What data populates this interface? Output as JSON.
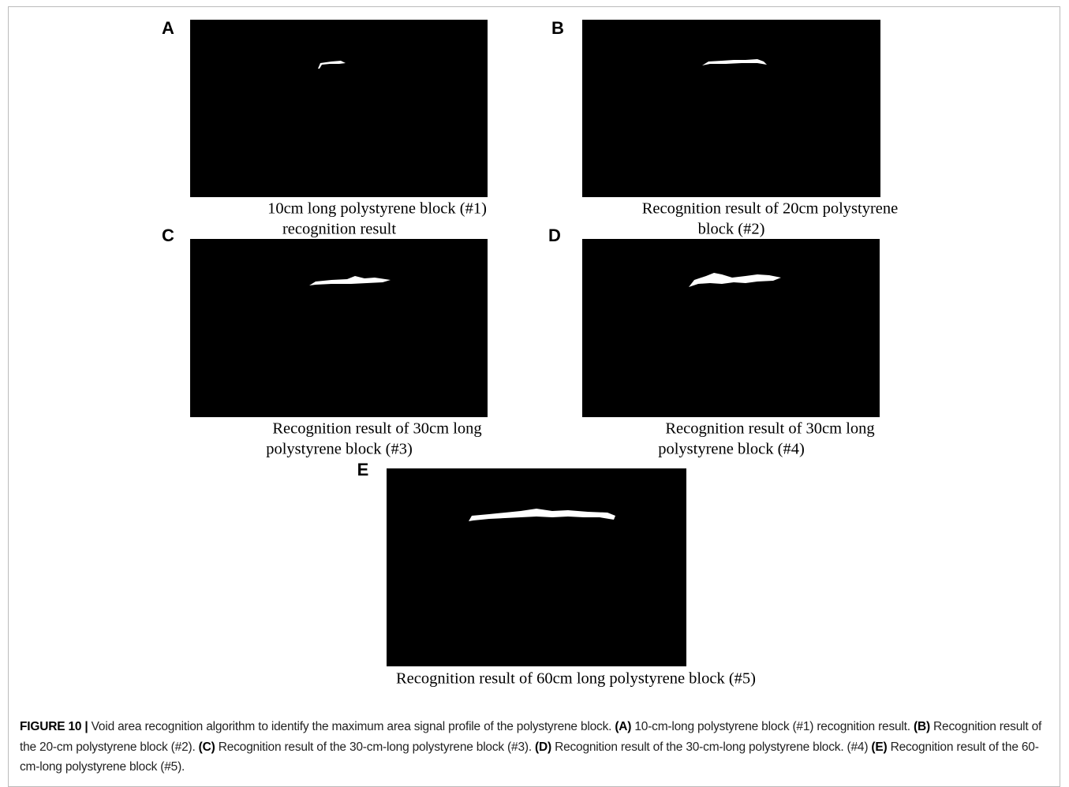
{
  "panels": [
    {
      "letter": "A",
      "caption_lines": [
        "10cm long polystyrene block (#1)",
        "recognition result"
      ]
    },
    {
      "letter": "B",
      "caption_lines": [
        "Recognition result of 20cm polystyrene",
        "block (#2)"
      ]
    },
    {
      "letter": "C",
      "caption_lines": [
        "Recognition result of 30cm long",
        "polystyrene block (#3)"
      ]
    },
    {
      "letter": "D",
      "caption_lines": [
        "Recognition result of 30cm long",
        "polystyrene block (#4)"
      ]
    },
    {
      "letter": "E",
      "caption_lines": [
        "Recognition result of 60cm long polystyrene block (#5)"
      ]
    }
  ],
  "caption": {
    "label": "FIGURE 10 |",
    "parts": [
      {
        "text": " Void area recognition algorithm to identify the maximum area signal profile of the polystyrene block. ",
        "bold": false
      },
      {
        "text": "(A)",
        "bold": true
      },
      {
        "text": " 10-cm-long polystyrene block (#1) recognition result. ",
        "bold": false
      },
      {
        "text": "(B)",
        "bold": true
      },
      {
        "text": " Recognition result of the 20-cm polystyrene block (#2). ",
        "bold": false
      },
      {
        "text": "(C)",
        "bold": true
      },
      {
        "text": " Recognition result of the 30-cm-long polystyrene block (#3). ",
        "bold": false
      },
      {
        "text": "(D)",
        "bold": true
      },
      {
        "text": " Recognition result of the 30-cm-long polystyrene block. (#4) ",
        "bold": false
      },
      {
        "text": "(E)",
        "bold": true
      },
      {
        "text": " Recognition result of the 60-cm-long polystyrene block (#5).",
        "bold": false
      }
    ]
  }
}
